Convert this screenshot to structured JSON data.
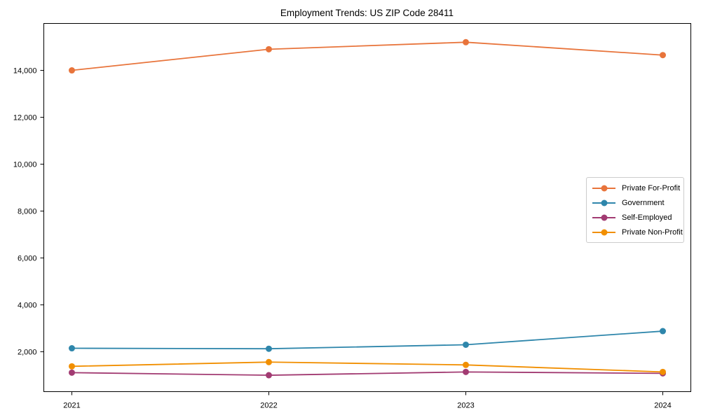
{
  "chart_data": {
    "type": "line",
    "title": "Employment Trends: US ZIP Code 28411",
    "xlabel": "",
    "ylabel": "",
    "x": [
      "2021",
      "2022",
      "2023",
      "2024"
    ],
    "series": [
      {
        "name": "Private For-Profit",
        "color": "#E8743B",
        "values": [
          14000,
          14900,
          15200,
          14650
        ]
      },
      {
        "name": "Government",
        "color": "#2E86AB",
        "values": [
          2150,
          2130,
          2300,
          2880
        ]
      },
      {
        "name": "Self-Employed",
        "color": "#A23B72",
        "values": [
          1110,
          1000,
          1140,
          1080
        ]
      },
      {
        "name": "Private Non-Profit",
        "color": "#F18F01",
        "values": [
          1380,
          1560,
          1440,
          1140
        ]
      }
    ],
    "ylim": [
      300,
      16000
    ],
    "yticks": [
      2000,
      4000,
      6000,
      8000,
      10000,
      12000,
      14000
    ],
    "ytick_labels": [
      "2,000",
      "4,000",
      "6,000",
      "8,000",
      "10,000",
      "12,000",
      "14,000"
    ],
    "grid": false,
    "legend_position": "center-right",
    "marker": "circle"
  },
  "colors": {
    "background": "#ffffff",
    "axis": "#000000",
    "text": "#000000",
    "legend_border": "#cccccc"
  }
}
